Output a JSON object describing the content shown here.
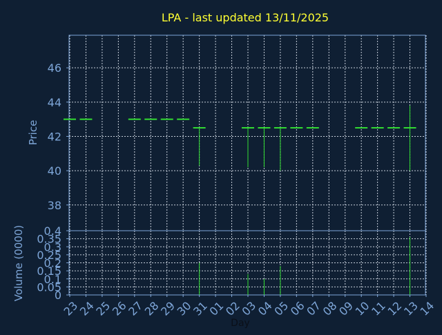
{
  "colors": {
    "background": "#0f1f33",
    "title": "#ffff33",
    "axis_text": "#7ea6d8",
    "grid": "#c8d0dc",
    "candle": "#33dd33",
    "frame": "#7ea6d8"
  },
  "chart_data": [
    {
      "type": "ohlc",
      "title": "LPA - last updated 13/11/2025",
      "xlabel": "",
      "ylabel": "Price",
      "ylim": [
        36.5,
        47.9
      ],
      "yticks": [
        38,
        40,
        42,
        44,
        46
      ],
      "grid": true,
      "categories": [
        "23",
        "24",
        "25",
        "26",
        "27",
        "28",
        "29",
        "30",
        "31",
        "01",
        "02",
        "03",
        "04",
        "05",
        "06",
        "07",
        "08",
        "09",
        "10",
        "11",
        "12",
        "13",
        "14"
      ],
      "bars": [
        {
          "day": "23",
          "open": 43.0,
          "high": 43.0,
          "low": 43.0,
          "close": 43.0
        },
        {
          "day": "24",
          "open": 43.0,
          "high": 43.0,
          "low": 43.0,
          "close": 43.0
        },
        {
          "day": "27",
          "open": 43.0,
          "high": 43.0,
          "low": 43.0,
          "close": 43.0
        },
        {
          "day": "28",
          "open": 43.0,
          "high": 43.0,
          "low": 43.0,
          "close": 43.0
        },
        {
          "day": "29",
          "open": 43.0,
          "high": 43.0,
          "low": 43.0,
          "close": 43.0
        },
        {
          "day": "30",
          "open": 43.0,
          "high": 43.0,
          "low": 43.0,
          "close": 43.0
        },
        {
          "day": "31",
          "open": 42.5,
          "high": 42.5,
          "low": 40.3,
          "close": 42.5
        },
        {
          "day": "03",
          "open": 42.5,
          "high": 42.5,
          "low": 40.2,
          "close": 42.5
        },
        {
          "day": "04",
          "open": 42.5,
          "high": 42.5,
          "low": 40.2,
          "close": 42.5
        },
        {
          "day": "05",
          "open": 42.5,
          "high": 42.5,
          "low": 40.0,
          "close": 42.5
        },
        {
          "day": "06",
          "open": 42.5,
          "high": 42.5,
          "low": 42.5,
          "close": 42.5
        },
        {
          "day": "07",
          "open": 42.5,
          "high": 42.5,
          "low": 42.5,
          "close": 42.5
        },
        {
          "day": "10",
          "open": 42.5,
          "high": 42.5,
          "low": 42.5,
          "close": 42.5
        },
        {
          "day": "11",
          "open": 42.5,
          "high": 42.5,
          "low": 42.5,
          "close": 42.5
        },
        {
          "day": "12",
          "open": 42.5,
          "high": 42.5,
          "low": 42.5,
          "close": 42.5
        },
        {
          "day": "13",
          "open": 42.5,
          "high": 43.8,
          "low": 40.0,
          "close": 42.5
        }
      ]
    },
    {
      "type": "bar",
      "title": "",
      "xlabel": "Day",
      "ylabel": "Volume (0000)",
      "ylim": [
        0,
        0.4
      ],
      "yticks": [
        0,
        0.05,
        0.1,
        0.15,
        0.2,
        0.25,
        0.3,
        0.35,
        0.4
      ],
      "ytick_labels": [
        "0",
        "0.05",
        "0.1",
        "0.15",
        "0.2",
        "0.25",
        "0.3",
        "0.35",
        "0.4"
      ],
      "grid": true,
      "categories": [
        "23",
        "24",
        "25",
        "26",
        "27",
        "28",
        "29",
        "30",
        "31",
        "01",
        "02",
        "03",
        "04",
        "05",
        "06",
        "07",
        "08",
        "09",
        "10",
        "11",
        "12",
        "13",
        "14"
      ],
      "bars": [
        {
          "day": "31",
          "value": 0.2
        },
        {
          "day": "03",
          "value": 0.13
        },
        {
          "day": "04",
          "value": 0.1
        },
        {
          "day": "05",
          "value": 0.18
        },
        {
          "day": "13",
          "value": 0.36
        }
      ]
    }
  ]
}
